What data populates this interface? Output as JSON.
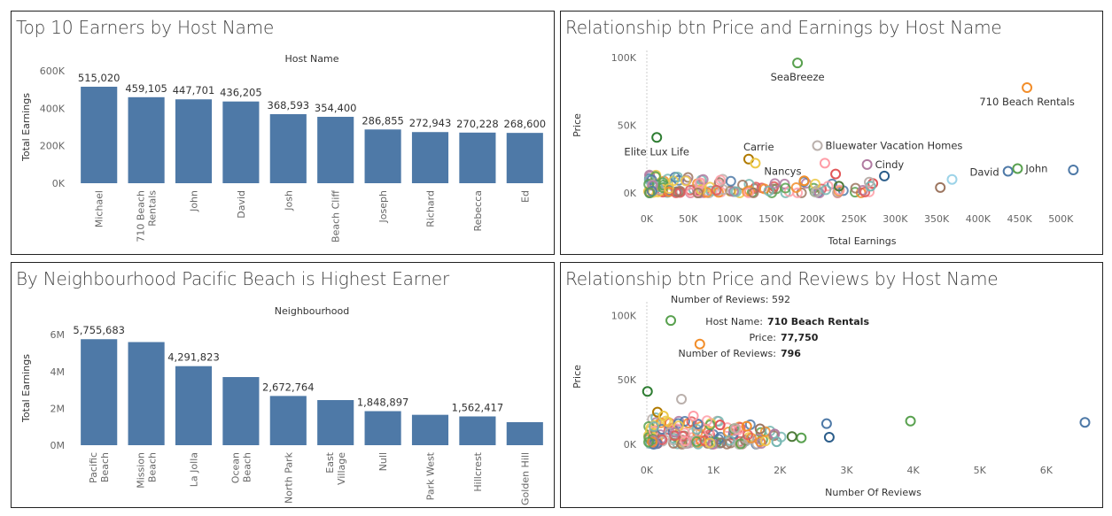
{
  "panels": {
    "top_earners_title": "Top 10 Earners by Host Name",
    "price_earnings_title": "Relationship btn Price and Earnings by Host Name",
    "neighbourhood_title": "By Neighbourhood Pacific Beach is Highest Earner",
    "price_reviews_title": "Relationship btn Price and Reviews by Host Name"
  },
  "colors": {
    "bar": "#4e79a7",
    "tooltip_partial": "Number of Reviews: 592"
  },
  "chart_data": [
    {
      "id": "top_earners",
      "type": "bar",
      "title": "Top 10 Earners by Host Name",
      "column_header": "Host Name",
      "ylabel": "Total Earnings",
      "ylim": [
        0,
        600000
      ],
      "yticks": [
        {
          "v": 0,
          "label": "0K"
        },
        {
          "v": 200000,
          "label": "200K"
        },
        {
          "v": 400000,
          "label": "400K"
        },
        {
          "v": 600000,
          "label": "600K"
        }
      ],
      "categories": [
        [
          "Michael"
        ],
        [
          "710 Beach",
          "Rentals"
        ],
        [
          "John"
        ],
        [
          "David"
        ],
        [
          "Josh"
        ],
        [
          "Beach Cliff"
        ],
        [
          "Joseph"
        ],
        [
          "Richard"
        ],
        [
          "Rebecca"
        ],
        [
          "Ed"
        ]
      ],
      "values": [
        515020,
        459105,
        447701,
        436205,
        368593,
        354400,
        286855,
        272943,
        270228,
        268600
      ],
      "value_labels": [
        "515,020",
        "459,105",
        "447,701",
        "436,205",
        "368,593",
        "354,400",
        "286,855",
        "272,943",
        "270,228",
        "268,600"
      ]
    },
    {
      "id": "neighbourhood",
      "type": "bar",
      "title": "By Neighbourhood Pacific Beach is Highest Earner",
      "column_header": "Neighbourhood",
      "ylabel": "Total Earnings",
      "ylim": [
        0,
        6200000
      ],
      "yticks": [
        {
          "v": 0,
          "label": "0M"
        },
        {
          "v": 2000000,
          "label": "2M"
        },
        {
          "v": 4000000,
          "label": "4M"
        },
        {
          "v": 6000000,
          "label": "6M"
        }
      ],
      "categories": [
        [
          "Pacific",
          "Beach"
        ],
        [
          "Mission",
          "Beach"
        ],
        [
          "La Jolla"
        ],
        [
          "Ocean",
          "Beach"
        ],
        [
          "North Park"
        ],
        [
          "East",
          "Village"
        ],
        [
          "Null"
        ],
        [
          "Park West"
        ],
        [
          "Hillcrest"
        ],
        [
          "Golden Hill"
        ]
      ],
      "values": [
        5755683,
        5600000,
        4291823,
        3700000,
        2672764,
        2450000,
        1848897,
        1650000,
        1562417,
        1250000
      ],
      "value_labels": [
        "5,755,683",
        "",
        "4,291,823",
        "",
        "2,672,764",
        "",
        "1,848,897",
        "",
        "1,562,417",
        ""
      ]
    },
    {
      "id": "price_earnings",
      "type": "scatter",
      "title": "Relationship btn Price and Earnings by Host Name",
      "xlabel": "Total Earnings",
      "ylabel": "Price",
      "xlim": [
        0,
        520000
      ],
      "ylim": [
        0,
        100000
      ],
      "xticks": [
        {
          "v": 0,
          "label": "0K"
        },
        {
          "v": 50000,
          "label": "50K"
        },
        {
          "v": 100000,
          "label": "100K"
        },
        {
          "v": 150000,
          "label": "150K"
        },
        {
          "v": 200000,
          "label": "200K"
        },
        {
          "v": 250000,
          "label": "250K"
        },
        {
          "v": 300000,
          "label": "300K"
        },
        {
          "v": 350000,
          "label": "350K"
        },
        {
          "v": 400000,
          "label": "400K"
        },
        {
          "v": 450000,
          "label": "450K"
        },
        {
          "v": 500000,
          "label": "500K"
        }
      ],
      "yticks": [
        {
          "v": 0,
          "label": "0K"
        },
        {
          "v": 50000,
          "label": "50K"
        },
        {
          "v": 100000,
          "label": "100K"
        }
      ],
      "points": [
        {
          "x": 182000,
          "y": 96000,
          "c": "#59a14f",
          "label": "SeaBreeze"
        },
        {
          "x": 459105,
          "y": 77750,
          "c": "#f28e2b",
          "label": "710 Beach Rentals"
        },
        {
          "x": 12000,
          "y": 41000,
          "c": "#2e7d32",
          "label": "Elite Lux Life"
        },
        {
          "x": 123000,
          "y": 25000,
          "c": "#b07a00",
          "label": "Carrie"
        },
        {
          "x": 131000,
          "y": 22000,
          "c": "#edc948",
          "label": "Nancys"
        },
        {
          "x": 206000,
          "y": 35000,
          "c": "#bab0ac",
          "label": "Bluewater Vacation Homes"
        },
        {
          "x": 266000,
          "y": 21000,
          "c": "#b07aa1",
          "label": "Cindy"
        },
        {
          "x": 436205,
          "y": 16000,
          "c": "#4e79a7",
          "label": "David"
        },
        {
          "x": 447701,
          "y": 18000,
          "c": "#59a14f",
          "label": "John"
        },
        {
          "x": 515020,
          "y": 17000,
          "c": "#4e79a7"
        },
        {
          "x": 286855,
          "y": 12500,
          "c": "#2b5d8a"
        },
        {
          "x": 368593,
          "y": 10000,
          "c": "#9cd3e8"
        },
        {
          "x": 354400,
          "y": 4000,
          "c": "#9c755f"
        },
        {
          "x": 272943,
          "y": 7000,
          "c": "#e15759"
        },
        {
          "x": 270228,
          "y": 5000,
          "c": "#76b7b2"
        },
        {
          "x": 268600,
          "y": 8000,
          "c": "#bab0ac"
        },
        {
          "x": 228000,
          "y": 14000,
          "c": "#e15759"
        },
        {
          "x": 232000,
          "y": 5000,
          "c": "#4e7a3a"
        },
        {
          "x": 215000,
          "y": 22000,
          "c": "#ff9da7"
        },
        {
          "x": 190000,
          "y": 9000,
          "c": "#f28e2b"
        }
      ]
    },
    {
      "id": "price_reviews",
      "type": "scatter",
      "title": "Relationship btn Price and Reviews by Host Name",
      "xlabel": "Number Of Reviews",
      "ylabel": "Price",
      "xlim": [
        0,
        6800
      ],
      "ylim": [
        0,
        105000
      ],
      "xticks": [
        {
          "v": 0,
          "label": "0K"
        },
        {
          "v": 1000,
          "label": "1K"
        },
        {
          "v": 2000,
          "label": "2K"
        },
        {
          "v": 3000,
          "label": "3K"
        },
        {
          "v": 4000,
          "label": "4K"
        },
        {
          "v": 5000,
          "label": "5K"
        },
        {
          "v": 6000,
          "label": "6K"
        }
      ],
      "yticks": [
        {
          "v": 0,
          "label": "0K"
        },
        {
          "v": 50000,
          "label": "50K"
        },
        {
          "v": 100000,
          "label": "100K"
        }
      ],
      "points": [
        {
          "x": 360,
          "y": 96000,
          "c": "#59a14f"
        },
        {
          "x": 796,
          "y": 77750,
          "c": "#f28e2b"
        },
        {
          "x": 10,
          "y": 41000,
          "c": "#2e7d32"
        },
        {
          "x": 520,
          "y": 35000,
          "c": "#bab0ac"
        },
        {
          "x": 6580,
          "y": 17000,
          "c": "#4e79a7"
        },
        {
          "x": 3960,
          "y": 18000,
          "c": "#59a14f"
        },
        {
          "x": 2700,
          "y": 16000,
          "c": "#4e79a7"
        },
        {
          "x": 2740,
          "y": 5500,
          "c": "#2b5d8a"
        },
        {
          "x": 2320,
          "y": 5000,
          "c": "#59a14f"
        },
        {
          "x": 2180,
          "y": 6000,
          "c": "#4e7a3a"
        },
        {
          "x": 1920,
          "y": 8000,
          "c": "#b07aa1"
        },
        {
          "x": 1950,
          "y": 2000,
          "c": "#76b7b2"
        },
        {
          "x": 1100,
          "y": 15000,
          "c": "#e15759"
        },
        {
          "x": 700,
          "y": 22000,
          "c": "#ff9da7"
        },
        {
          "x": 160,
          "y": 25000,
          "c": "#b07a00"
        },
        {
          "x": 250,
          "y": 22000,
          "c": "#edc948"
        },
        {
          "x": 1500,
          "y": 14000,
          "c": "#f28e2b"
        },
        {
          "x": 1700,
          "y": 12000,
          "c": "#9c755f"
        }
      ],
      "tooltip": [
        {
          "k": "Host Name:",
          "v": "710 Beach Rentals"
        },
        {
          "k": "Price:",
          "v": "77,750"
        },
        {
          "k": "Number of Reviews:",
          "v": "796"
        }
      ]
    }
  ]
}
